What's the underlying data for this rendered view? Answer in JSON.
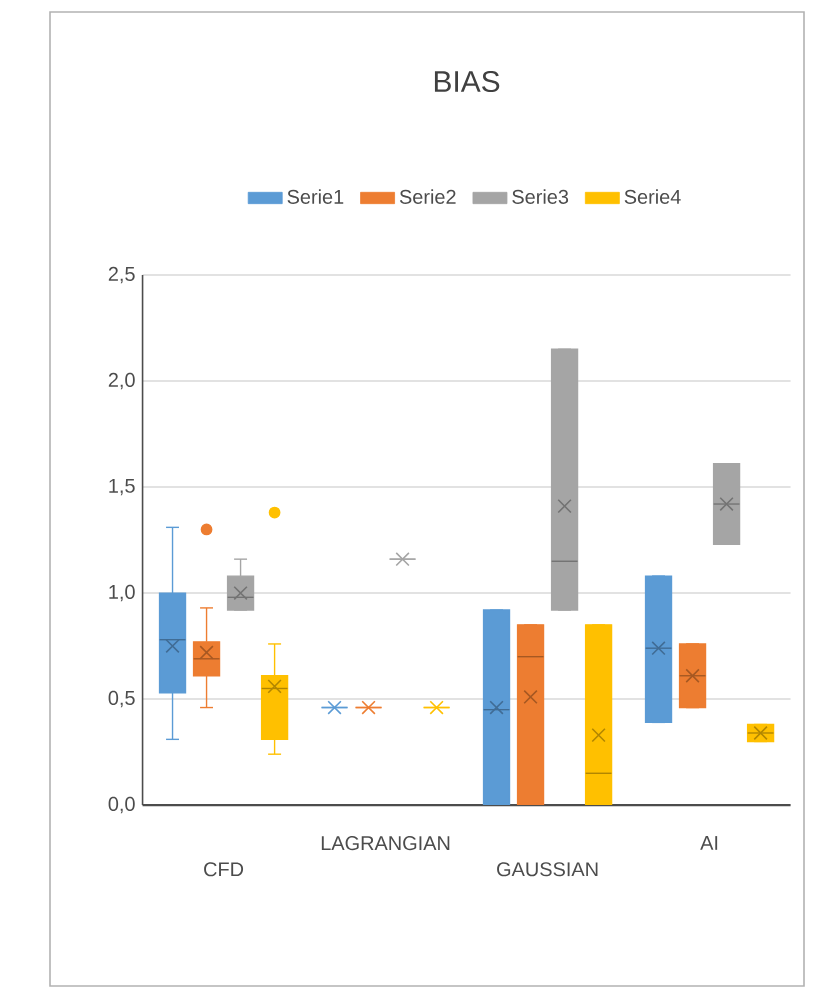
{
  "chart_data": {
    "type": "box",
    "title": "BIAS",
    "categories": [
      "CFD",
      "LAGRANGIAN",
      "GAUSSIAN",
      "AI"
    ],
    "series": [
      {
        "name": "Serie1",
        "color": "#5b9bd5",
        "boxes": [
          {
            "low": 0.31,
            "q1": 0.53,
            "median": 0.78,
            "q3": 1.0,
            "high": 1.31,
            "mean": 0.75
          },
          {
            "low": 0.46,
            "q1": 0.46,
            "median": 0.46,
            "q3": 0.46,
            "high": 0.46,
            "mean": 0.46
          },
          {
            "low": 0.0,
            "q1": 0.0,
            "median": 0.45,
            "q3": 0.92,
            "high": 0.92,
            "mean": 0.46
          },
          {
            "low": 0.39,
            "q1": 0.39,
            "median": 0.74,
            "q3": 1.08,
            "high": 1.08,
            "mean": 0.74
          }
        ]
      },
      {
        "name": "Serie2",
        "color": "#ed7d31",
        "boxes": [
          {
            "low": 0.46,
            "q1": 0.61,
            "median": 0.69,
            "q3": 0.77,
            "high": 0.93,
            "mean": 0.72,
            "outliers": [
              1.3
            ]
          },
          {
            "low": 0.46,
            "q1": 0.46,
            "median": 0.46,
            "q3": 0.46,
            "high": 0.46,
            "mean": 0.46
          },
          {
            "low": 0.0,
            "q1": 0.0,
            "median": 0.7,
            "q3": 0.85,
            "high": 0.85,
            "mean": 0.51
          },
          {
            "low": 0.46,
            "q1": 0.46,
            "median": 0.61,
            "q3": 0.76,
            "high": 0.76,
            "mean": 0.61
          }
        ]
      },
      {
        "name": "Serie3",
        "color": "#a5a5a5",
        "boxes": [
          {
            "low": 0.92,
            "q1": 0.92,
            "median": 0.98,
            "q3": 1.08,
            "high": 1.16,
            "mean": 1.0
          },
          {
            "low": 1.16,
            "q1": 1.16,
            "median": 1.16,
            "q3": 1.16,
            "high": 1.16,
            "mean": 1.16
          },
          {
            "low": 0.92,
            "q1": 0.92,
            "median": 1.15,
            "q3": 2.15,
            "high": 2.15,
            "mean": 1.41
          },
          {
            "low": 1.23,
            "q1": 1.23,
            "median": 1.42,
            "q3": 1.61,
            "high": 1.61,
            "mean": 1.42
          }
        ]
      },
      {
        "name": "Serie4",
        "color": "#ffc000",
        "boxes": [
          {
            "low": 0.24,
            "q1": 0.31,
            "median": 0.55,
            "q3": 0.61,
            "high": 0.76,
            "mean": 0.56,
            "outliers": [
              1.38
            ]
          },
          {
            "low": 0.46,
            "q1": 0.46,
            "median": 0.46,
            "q3": 0.46,
            "high": 0.46,
            "mean": 0.46
          },
          {
            "low": 0.0,
            "q1": 0.0,
            "median": 0.15,
            "q3": 0.85,
            "high": 0.85,
            "mean": 0.33
          },
          {
            "low": 0.3,
            "q1": 0.3,
            "median": 0.34,
            "q3": 0.38,
            "high": 0.38,
            "mean": 0.34
          }
        ]
      }
    ],
    "ylim": [
      0,
      2.5
    ],
    "yticks": [
      {
        "value": 0,
        "label": "0,0"
      },
      {
        "value": 0.5,
        "label": "0,5"
      },
      {
        "value": 1.0,
        "label": "1,0"
      },
      {
        "value": 1.5,
        "label": "1,5"
      },
      {
        "value": 2.0,
        "label": "2,0"
      },
      {
        "value": 2.5,
        "label": "2,5"
      }
    ],
    "grid": "y",
    "legend": "top"
  }
}
